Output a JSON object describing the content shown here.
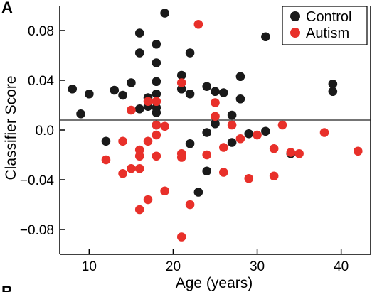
{
  "panel_label": "A",
  "next_panel_label": "B",
  "chart_data": {
    "type": "scatter",
    "xlabel": "Age (years)",
    "ylabel": "Classifier Score",
    "xlim": [
      6.5,
      43.5
    ],
    "ylim": [
      -0.1,
      0.1
    ],
    "xticks": [
      10,
      20,
      30,
      40
    ],
    "yticks": [
      -0.08,
      -0.04,
      0.0,
      0.04,
      0.08
    ],
    "ytick_labels": [
      "−0.08",
      "−0.04",
      "0.0",
      "0.04",
      "0.08"
    ],
    "threshold_line": 0.008,
    "legend": {
      "position": "top-right"
    },
    "series": [
      {
        "name": "Control",
        "color": "#1a1a1a",
        "points": [
          [
            8,
            0.033
          ],
          [
            9,
            0.013
          ],
          [
            10,
            0.029
          ],
          [
            12,
            -0.009
          ],
          [
            13,
            0.032
          ],
          [
            14,
            0.028
          ],
          [
            15,
            0.038
          ],
          [
            16,
            0.078
          ],
          [
            16,
            0.062
          ],
          [
            16,
            0.017
          ],
          [
            17,
            0.026
          ],
          [
            17,
            0.019
          ],
          [
            18,
            0.069
          ],
          [
            18,
            0.054
          ],
          [
            18,
            0.039
          ],
          [
            18,
            0.029
          ],
          [
            18,
            0.018
          ],
          [
            18,
            0.014
          ],
          [
            18,
            0.004
          ],
          [
            19,
            0.094
          ],
          [
            21,
            0.044
          ],
          [
            21,
            0.033
          ],
          [
            22,
            0.062
          ],
          [
            22,
            0.029
          ],
          [
            22,
            -0.011
          ],
          [
            23,
            -0.05
          ],
          [
            24,
            0.035
          ],
          [
            24,
            -0.002
          ],
          [
            24,
            -0.033
          ],
          [
            25,
            0.031
          ],
          [
            25,
            0.005
          ],
          [
            26,
            0.03
          ],
          [
            27,
            0.012
          ],
          [
            27,
            -0.01
          ],
          [
            28,
            0.043
          ],
          [
            28,
            0.025
          ],
          [
            29,
            -0.003
          ],
          [
            31,
            -0.001
          ],
          [
            31,
            0.075
          ],
          [
            34,
            -0.019
          ],
          [
            39,
            0.037
          ],
          [
            39,
            0.031
          ]
        ]
      },
      {
        "name": "Autism",
        "color": "#e8302a",
        "points": [
          [
            12,
            -0.024
          ],
          [
            14,
            -0.009
          ],
          [
            14,
            -0.035
          ],
          [
            15,
            0.016
          ],
          [
            15,
            -0.031
          ],
          [
            16,
            -0.016
          ],
          [
            16,
            -0.021
          ],
          [
            16,
            -0.031
          ],
          [
            16,
            -0.064
          ],
          [
            17,
            0.023
          ],
          [
            17,
            -0.009
          ],
          [
            17,
            -0.056
          ],
          [
            18,
            0.023
          ],
          [
            18,
            0.004
          ],
          [
            18,
            -0.004
          ],
          [
            18,
            -0.021
          ],
          [
            19,
            0.003
          ],
          [
            19,
            -0.049
          ],
          [
            21,
            0.038
          ],
          [
            21,
            -0.019
          ],
          [
            21,
            -0.022
          ],
          [
            21,
            -0.086
          ],
          [
            22,
            -0.06
          ],
          [
            23,
            0.085
          ],
          [
            24,
            -0.02
          ],
          [
            25,
            0.022
          ],
          [
            25,
            0.011
          ],
          [
            26,
            -0.014
          ],
          [
            26,
            -0.034
          ],
          [
            27,
            0.004
          ],
          [
            28,
            -0.007
          ],
          [
            29,
            -0.039
          ],
          [
            30,
            -0.004
          ],
          [
            32,
            -0.015
          ],
          [
            32,
            -0.037
          ],
          [
            33,
            0.004
          ],
          [
            34,
            -0.018
          ],
          [
            35,
            -0.019
          ],
          [
            38,
            -0.002
          ],
          [
            42,
            -0.017
          ]
        ]
      }
    ]
  }
}
